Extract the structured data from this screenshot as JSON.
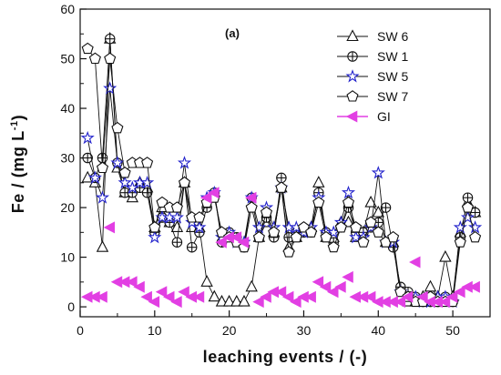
{
  "chart_data": {
    "type": "line",
    "panel_label": "(a)",
    "xlabel": "leaching events / (-)",
    "ylabel_main": "Fe / (mg L",
    "ylabel_sup": "-1",
    "ylabel_tail": ")",
    "xlim": [
      0,
      55
    ],
    "ylim": [
      -2,
      60
    ],
    "xticks": [
      0,
      10,
      20,
      30,
      40,
      50
    ],
    "yticks": [
      0,
      10,
      20,
      30,
      40,
      50,
      60
    ],
    "x_tick_labels": [
      "0",
      "10",
      "20",
      "30",
      "40",
      "50"
    ],
    "y_tick_labels": [
      "0",
      "10",
      "20",
      "30",
      "40",
      "50",
      "60"
    ],
    "grid": false,
    "legend_position": "top-right",
    "series": [
      {
        "name": "SW 6",
        "marker": "triangle",
        "x": [
          1,
          2,
          3,
          4,
          5,
          6,
          7,
          8,
          9,
          10,
          11,
          12,
          13,
          14,
          15,
          16,
          17,
          18,
          19,
          20,
          21,
          22,
          23,
          24,
          25,
          26,
          27,
          28,
          29,
          30,
          31,
          32,
          33,
          34,
          35,
          36,
          37,
          38,
          39,
          40,
          41,
          42,
          43,
          44,
          45,
          46,
          47,
          48,
          49,
          50,
          51,
          52,
          53
        ],
        "values": [
          26,
          25,
          12,
          54,
          28,
          23,
          22,
          25,
          24,
          16,
          20,
          17,
          16,
          25,
          16,
          16,
          5,
          2,
          1,
          1,
          1,
          1,
          4,
          14,
          17,
          15,
          24,
          12,
          14,
          15,
          16,
          25,
          14,
          14,
          17,
          17,
          14,
          15,
          21,
          19,
          13,
          13,
          2,
          1,
          1,
          2,
          4,
          2,
          10,
          2,
          15,
          21,
          19
        ]
      },
      {
        "name": "SW 1",
        "marker": "circle-plus",
        "x": [
          1,
          2,
          3,
          4,
          5,
          6,
          7,
          8,
          9,
          10,
          11,
          12,
          13,
          14,
          15,
          16,
          17,
          18,
          19,
          20,
          21,
          22,
          23,
          24,
          25,
          26,
          27,
          28,
          29,
          30,
          31,
          32,
          33,
          34,
          35,
          36,
          37,
          38,
          39,
          40,
          41,
          42,
          43,
          44,
          45,
          46,
          47,
          48,
          49,
          50,
          51,
          52,
          53
        ],
        "values": [
          30,
          26,
          30,
          54,
          29,
          23,
          23,
          24,
          23,
          15,
          18,
          17,
          13,
          25,
          12,
          15,
          20,
          23,
          13,
          15,
          14,
          12,
          22,
          14,
          18,
          14,
          26,
          14,
          15,
          15,
          15,
          23,
          15,
          13,
          16,
          20,
          15,
          15,
          16,
          17,
          20,
          12,
          4,
          3,
          2,
          1,
          1,
          1,
          2,
          1,
          14,
          22,
          19
        ]
      },
      {
        "name": "SW 5",
        "marker": "star",
        "x": [
          1,
          2,
          3,
          4,
          5,
          6,
          7,
          8,
          9,
          10,
          11,
          12,
          13,
          14,
          15,
          16,
          17,
          18,
          19,
          20,
          21,
          22,
          23,
          24,
          25,
          26,
          27,
          28,
          29,
          30,
          31,
          32,
          33,
          34,
          35,
          36,
          37,
          38,
          39,
          40,
          41,
          42,
          43,
          44,
          45,
          46,
          47,
          48,
          49,
          50,
          51,
          52,
          53
        ],
        "values": [
          34,
          26,
          22,
          44,
          29,
          25,
          24,
          25,
          25,
          14,
          18,
          18,
          18,
          29,
          17,
          16,
          22,
          23,
          14,
          15,
          13,
          13,
          22,
          16,
          20,
          16,
          24,
          16,
          16,
          15,
          16,
          22,
          15,
          15,
          17,
          23,
          14,
          14,
          16,
          27,
          13,
          13,
          3,
          2,
          2,
          1,
          1,
          2,
          2,
          1,
          16,
          18,
          16
        ]
      },
      {
        "name": "SW 7",
        "marker": "pentagon",
        "x": [
          1,
          2,
          3,
          4,
          5,
          6,
          7,
          8,
          9,
          10,
          11,
          12,
          13,
          14,
          15,
          16,
          17,
          18,
          19,
          20,
          21,
          22,
          23,
          24,
          25,
          26,
          27,
          28,
          29,
          30,
          31,
          32,
          33,
          34,
          35,
          36,
          37,
          38,
          39,
          40,
          41,
          42,
          43,
          44,
          45,
          46,
          47,
          48,
          49,
          50,
          51,
          52,
          53
        ],
        "values": [
          52,
          50,
          28,
          50,
          36,
          27,
          29,
          29,
          29,
          16,
          21,
          20,
          20,
          25,
          18,
          18,
          21,
          22,
          15,
          14,
          13,
          12,
          20,
          14,
          19,
          15,
          24,
          11,
          14,
          16,
          15,
          21,
          14,
          12,
          16,
          21,
          16,
          13,
          17,
          15,
          13,
          14,
          3,
          2,
          1,
          1,
          2,
          1,
          1,
          1,
          13,
          20,
          14
        ]
      },
      {
        "name": "GI",
        "marker": "left-triangle",
        "x": [
          1,
          2,
          3,
          4,
          5,
          6,
          7,
          8,
          9,
          10,
          11,
          12,
          13,
          14,
          15,
          16,
          17,
          18,
          19,
          20,
          21,
          22,
          23,
          24,
          25,
          26,
          27,
          28,
          29,
          30,
          31,
          32,
          33,
          34,
          35,
          36,
          37,
          38,
          39,
          40,
          41,
          42,
          43,
          44,
          45,
          46,
          47,
          48,
          49,
          50,
          51,
          52,
          53
        ],
        "values": [
          2,
          2,
          2,
          16,
          5,
          5,
          5,
          4,
          2,
          1,
          3,
          2,
          1,
          3,
          2,
          2,
          22,
          23,
          13,
          14,
          14,
          13,
          22,
          1,
          2,
          3,
          3,
          2,
          1,
          2,
          2,
          5,
          4,
          3,
          4,
          6,
          2,
          2,
          2,
          1,
          1,
          1,
          1,
          2,
          9,
          2,
          1,
          1,
          1,
          2,
          3,
          4,
          4
        ]
      }
    ]
  }
}
